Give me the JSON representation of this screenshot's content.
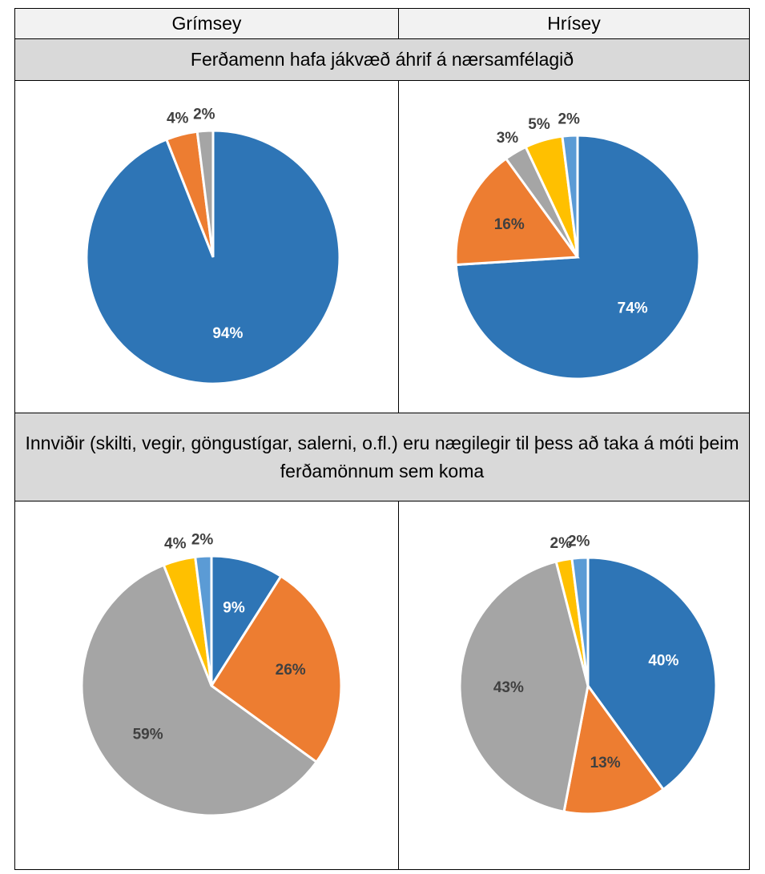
{
  "table": {
    "columns": [
      "Grímsey",
      "Hrísey"
    ],
    "sections": [
      {
        "title": "Ferðamenn hafa jákvæð áhrif á nærsamfélagið"
      },
      {
        "title": "Innviðir (skilti, vegir, göngustígar, salerni, o.fl.) eru nægilegir til þess að taka á móti þeim ferðamönnum sem koma"
      }
    ]
  },
  "chart_data": [
    {
      "type": "pie",
      "values": [
        94,
        4,
        2
      ],
      "value_labels": [
        "94%",
        "4%",
        "2%"
      ],
      "colors": [
        "#2e75b6",
        "#ed7d31",
        "#a5a5a5"
      ]
    },
    {
      "type": "pie",
      "values": [
        74,
        16,
        3,
        5,
        2
      ],
      "value_labels": [
        "74%",
        "16%",
        "3%",
        "5%",
        "2%"
      ],
      "colors": [
        "#2e75b6",
        "#ed7d31",
        "#a5a5a5",
        "#ffc000",
        "#5b9bd5"
      ]
    },
    {
      "type": "pie",
      "values": [
        9,
        26,
        59,
        4,
        2
      ],
      "value_labels": [
        "9%",
        "26%",
        "59%",
        "4%",
        "2%"
      ],
      "colors": [
        "#2e75b6",
        "#ed7d31",
        "#a5a5a5",
        "#ffc000",
        "#5b9bd5"
      ]
    },
    {
      "type": "pie",
      "values": [
        40,
        13,
        43,
        2,
        2
      ],
      "value_labels": [
        "40%",
        "13%",
        "43%",
        "2%",
        "2%"
      ],
      "colors": [
        "#2e75b6",
        "#ed7d31",
        "#a5a5a5",
        "#ffc000",
        "#5b9bd5"
      ]
    }
  ]
}
